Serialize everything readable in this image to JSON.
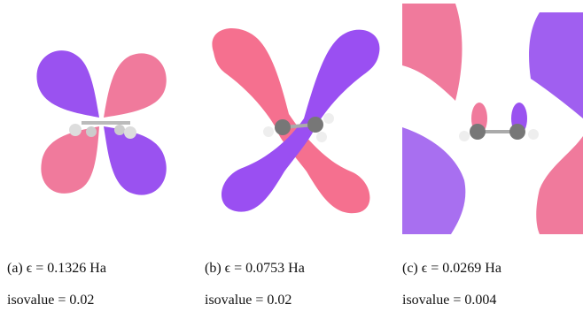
{
  "panels": [
    {
      "caption": "(a) ϵ = 0.1326 Ha",
      "isovalue": "isovalue = 0.02"
    },
    {
      "caption": "(b) ϵ = 0.0753 Ha",
      "isovalue": "isovalue = 0.02"
    },
    {
      "caption": "(c) ϵ = 0.0269 Ha",
      "isovalue": "isovalue = 0.004"
    }
  ]
}
